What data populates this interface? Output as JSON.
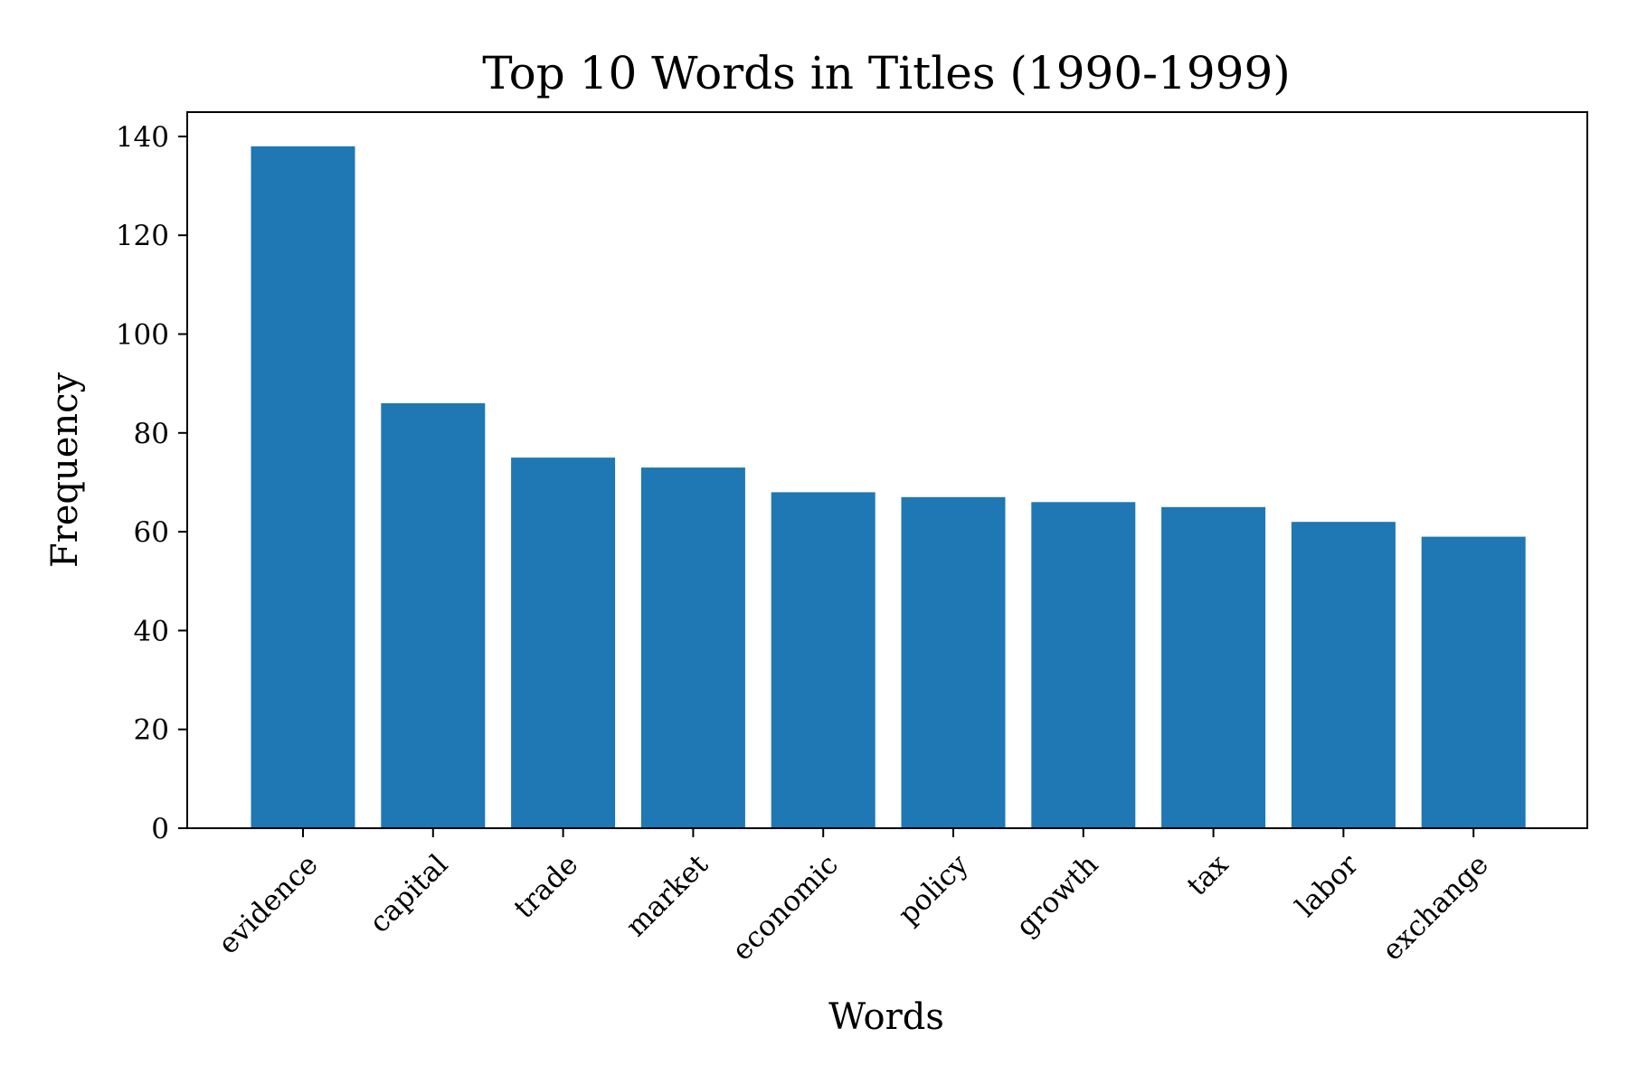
{
  "chart_data": {
    "type": "bar",
    "title": "Top 10 Words in Titles (1990-1999)",
    "xlabel": "Words",
    "ylabel": "Frequency",
    "categories": [
      "evidence",
      "capital",
      "trade",
      "market",
      "economic",
      "policy",
      "growth",
      "tax",
      "labor",
      "exchange"
    ],
    "values": [
      138,
      86,
      75,
      73,
      68,
      67,
      66,
      65,
      62,
      59
    ],
    "ylim": [
      0,
      145
    ],
    "yticks": [
      "0",
      "20",
      "40",
      "60",
      "80",
      "100",
      "120",
      "140"
    ],
    "grid": false,
    "legend": "none",
    "bar_color": "#1f77b4"
  }
}
